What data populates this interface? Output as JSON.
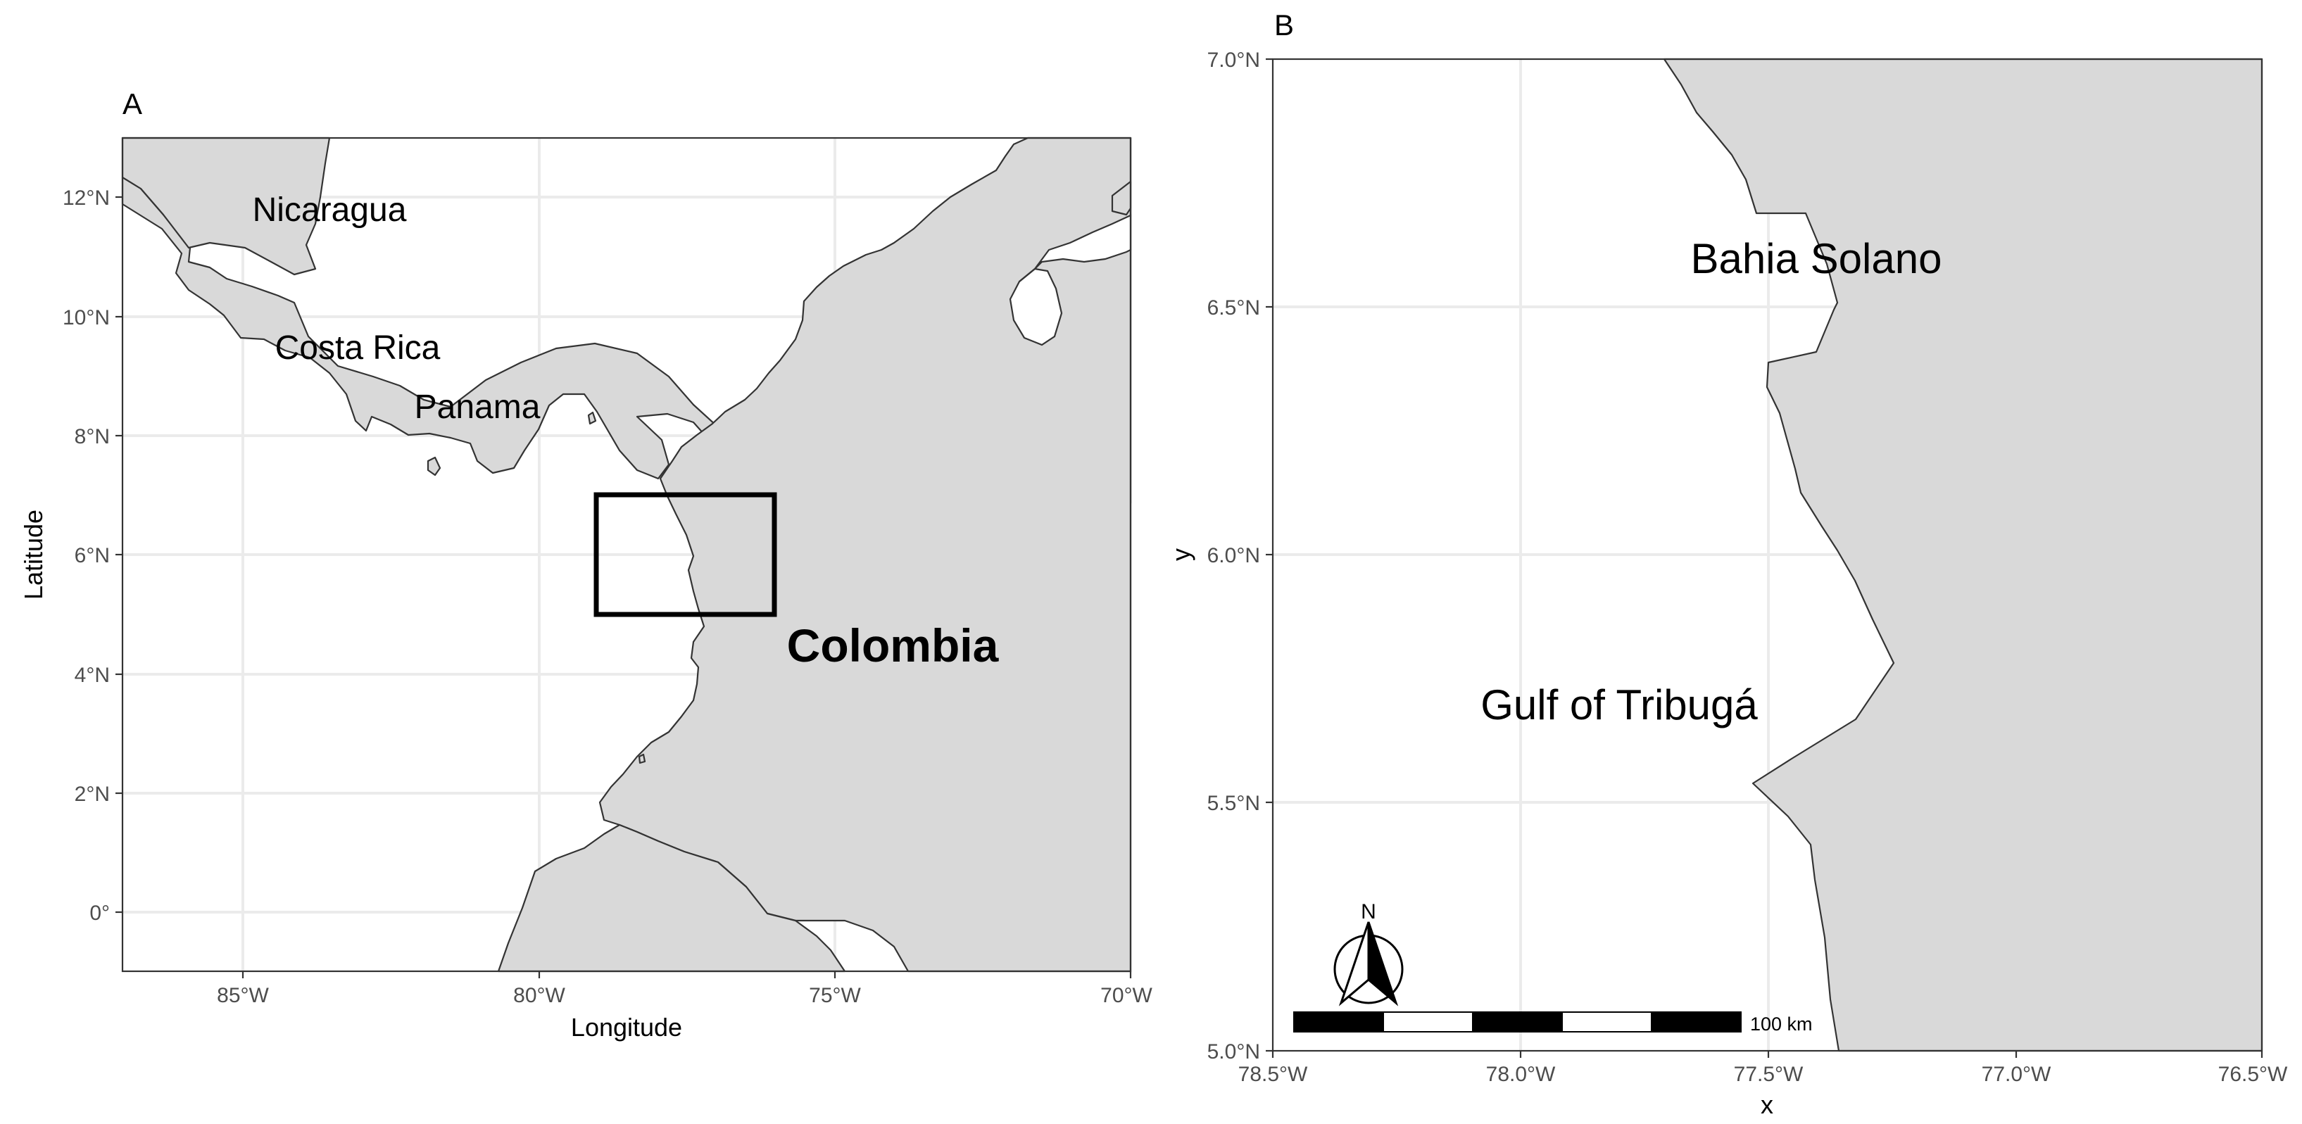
{
  "panel_a": {
    "tag": "A",
    "x_title": "Longitude",
    "y_title": "Latitude",
    "x_ticks": [
      "85°W",
      "80°W",
      "75°W",
      "70°W"
    ],
    "y_ticks": [
      "12°N",
      "10°N",
      "8°N",
      "6°N",
      "4°N",
      "2°N",
      "0°"
    ],
    "labels": {
      "nicaragua": "Nicaragua",
      "costa_rica": "Costa Rica",
      "panama": "Panama",
      "colombia": "Colombia"
    },
    "xlim_lon": [
      -87,
      -70
    ],
    "ylim_lat": [
      -1,
      13
    ],
    "study_area": {
      "lon": [
        -79,
        -76
      ],
      "lat": [
        5,
        7
      ]
    }
  },
  "panel_b": {
    "tag": "B",
    "x_title": "x",
    "y_title": "y",
    "x_ticks": [
      "78.5°W",
      "78.0°W",
      "77.5°W",
      "77.0°W",
      "76.5°W"
    ],
    "y_ticks": [
      "7.0°N",
      "6.5°N",
      "6.0°N",
      "5.5°N",
      "5.0°N"
    ],
    "labels": {
      "bahia_solano": "Bahia Solano",
      "gulf_of_tribuga": "Gulf of Tribugá"
    },
    "north_arrow": {
      "label": "N"
    },
    "scale_bar": {
      "label": "100 km",
      "segments": 5
    },
    "xlim_lon": [
      -78.5,
      -76.5
    ],
    "ylim_lat": [
      5,
      7
    ]
  },
  "colors": {
    "land": "#d9d9d9",
    "coastline": "#333333",
    "ocean": "#ffffff",
    "grid": "#ebebeb",
    "tick_text": "#4d4d4d"
  }
}
